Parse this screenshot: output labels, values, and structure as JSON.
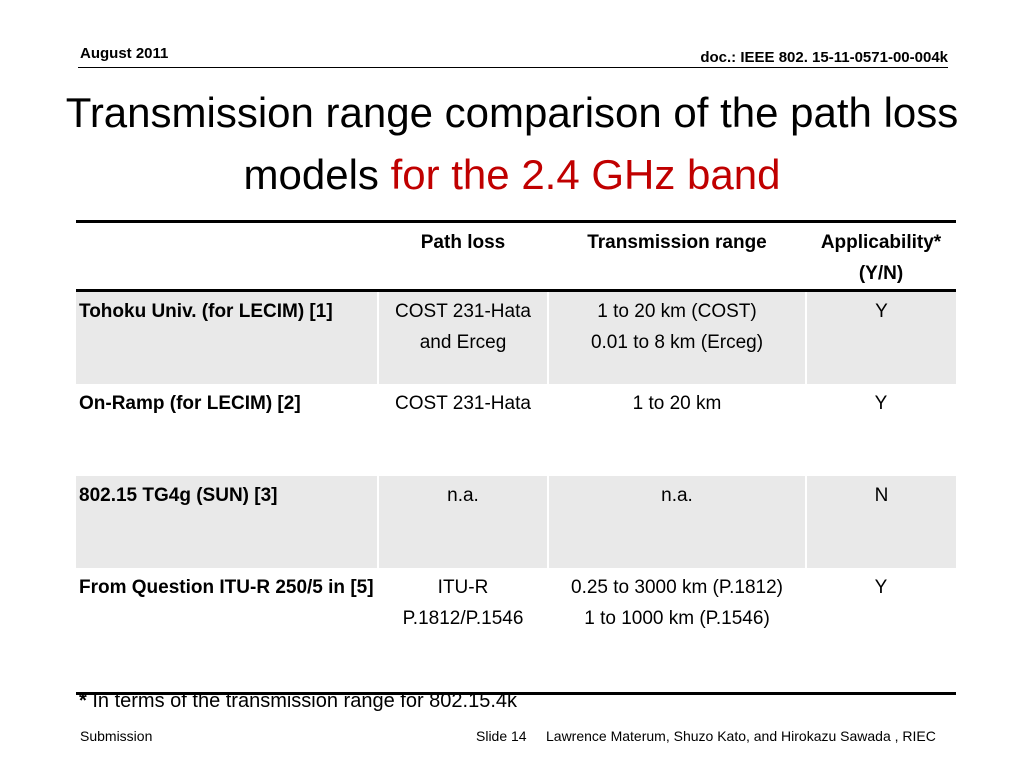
{
  "header": {
    "date": "August 2011",
    "doc_id": "doc.: IEEE 802. 15-11-0571-00-004k"
  },
  "title": {
    "line_main": "Transmission range comparison of the path loss models ",
    "line_accent": "for the 2.4 GHz band"
  },
  "table": {
    "columns": [
      "",
      "Path loss",
      "Transmission range",
      "Applicability* (Y/N)"
    ],
    "rows": [
      {
        "label": "Tohoku Univ. (for LECIM) [1]",
        "path_loss": "COST 231-Hata and Erceg",
        "range": [
          "1 to 20 km (COST)",
          "0.01 to 8 km (Erceg)"
        ],
        "applicability": "Y"
      },
      {
        "label": "On-Ramp (for LECIM) [2]",
        "path_loss": "COST 231-Hata",
        "range": [
          "1 to 20 km"
        ],
        "applicability": "Y"
      },
      {
        "label": "802.15 TG4g (SUN) [3]",
        "path_loss": "n.a.",
        "range": [
          "n.a."
        ],
        "applicability": "N"
      },
      {
        "label": "From Question ITU-R 250/5 in [5]",
        "path_loss": "ITU-R P.1812/P.1546",
        "range": [
          "0.25 to 3000 km (P.1812)",
          "1 to 1000 km (P.1546)"
        ],
        "applicability": "Y"
      }
    ]
  },
  "footnote": {
    "marker": "*",
    "text": " In terms of the transmission range for 802.15.4k"
  },
  "footer": {
    "left": "Submission",
    "slide": "Slide 14",
    "authors": "Lawrence Materum, Shuzo Kato, and Hirokazu Sawada , RIEC"
  }
}
